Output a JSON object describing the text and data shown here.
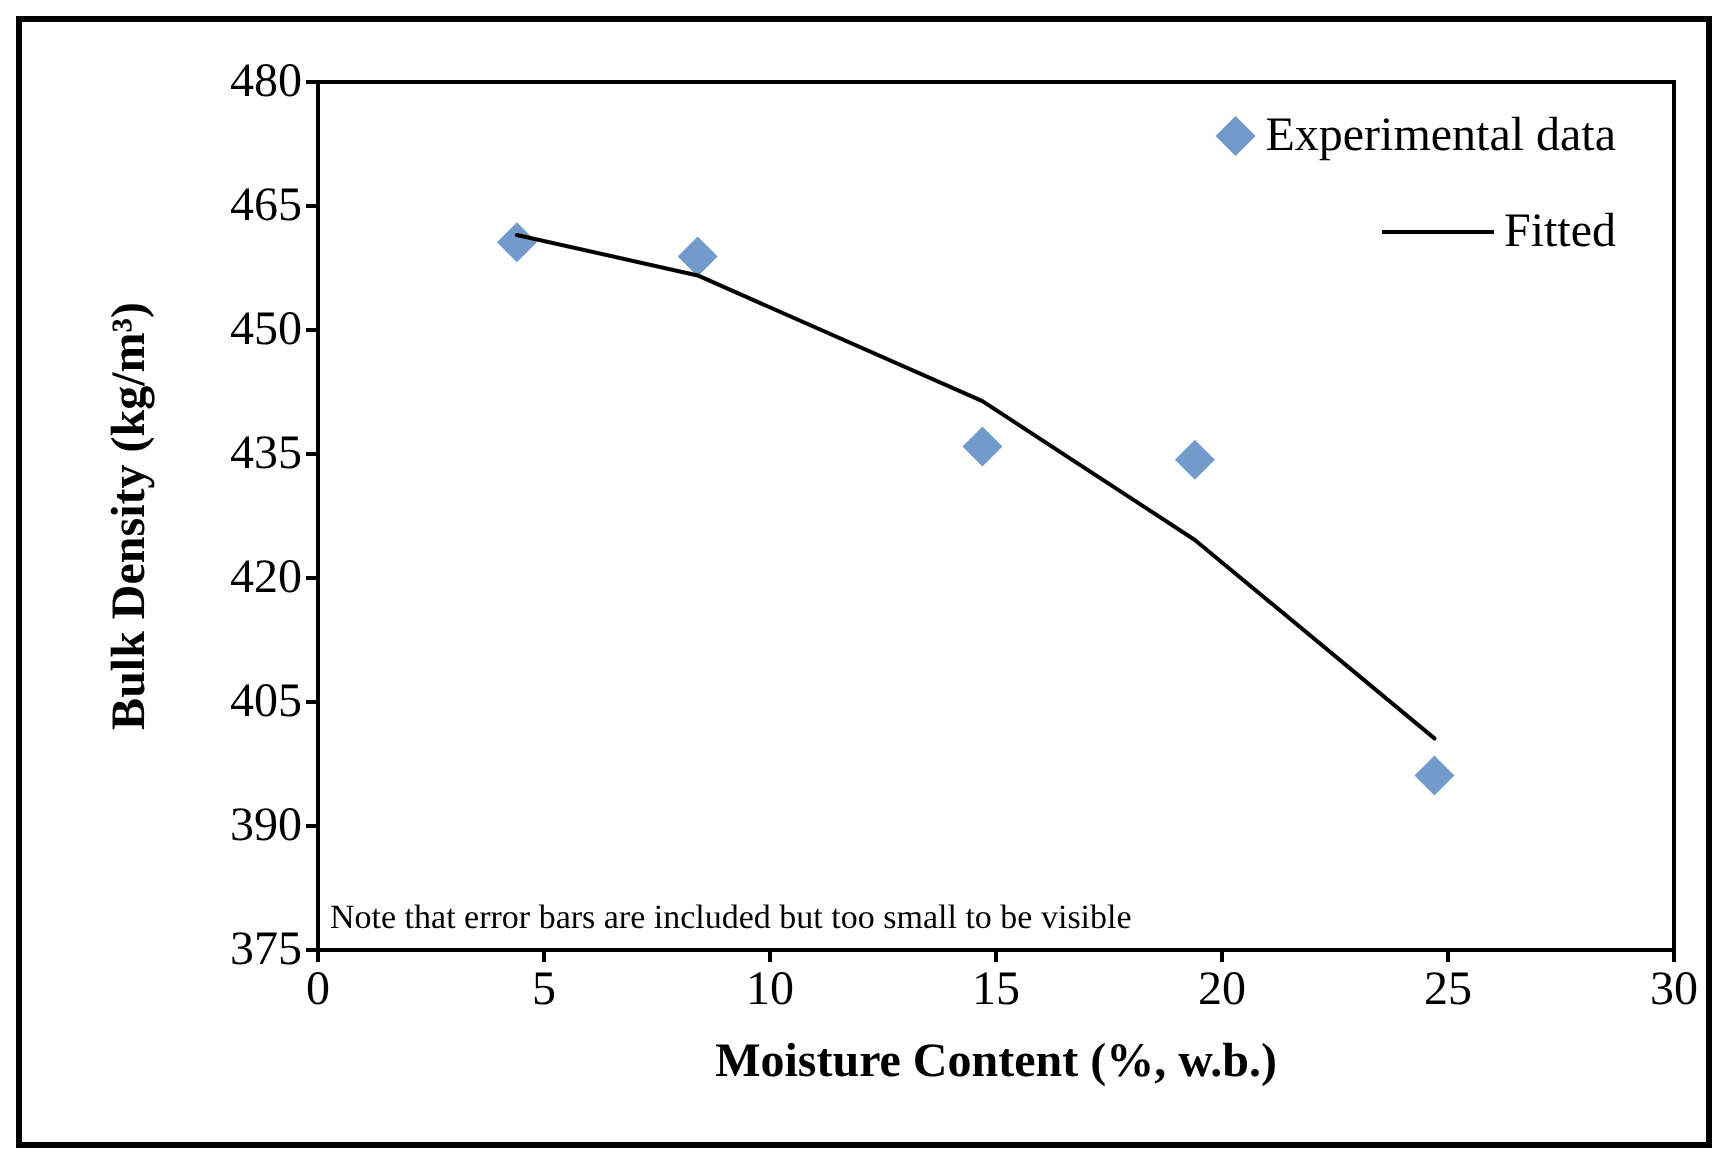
{
  "chart_data": {
    "type": "scatter",
    "xlabel": "Moisture Content (%, w.b.)",
    "ylabel": "Bulk Density (kg/m³)",
    "xlim": [
      0,
      30
    ],
    "xticks": [
      0,
      5,
      10,
      15,
      20,
      25,
      30
    ],
    "ylim": [
      375,
      480
    ],
    "yticks": [
      375,
      390,
      405,
      420,
      435,
      450,
      465,
      480
    ],
    "grid": false,
    "legend": "top right",
    "marker": "diamond",
    "annotations": [
      "Note that error bars are included but too small to be visible"
    ],
    "series": [
      {
        "name": "Experimental data",
        "color": "#4f81bd",
        "x": [
          4.4,
          8.4,
          14.7,
          19.4,
          24.7
        ],
        "values": [
          460.6,
          458.9,
          435.9,
          434.3,
          396.1
        ]
      },
      {
        "name": "Fitted",
        "type": "line",
        "color": "#000000",
        "line_style": "solid",
        "marker": "none",
        "x": [
          4.4,
          8.4,
          14.7,
          19.4,
          24.7
        ],
        "values": [
          461.5,
          456.6,
          441.4,
          424.6,
          400.6
        ]
      }
    ]
  }
}
